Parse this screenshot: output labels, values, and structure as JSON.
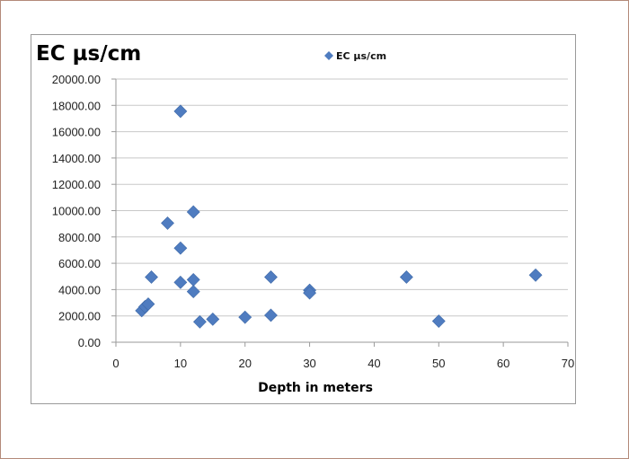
{
  "chart_data": {
    "type": "scatter",
    "title": "EC µs/cm",
    "xlabel": "Depth in meters",
    "ylabel": "",
    "xlim": [
      0,
      70
    ],
    "ylim": [
      0,
      20000
    ],
    "x_ticks": [
      "0",
      "10",
      "20",
      "30",
      "40",
      "50",
      "60",
      "70"
    ],
    "y_ticks": [
      "0.00",
      "2000.00",
      "4000.00",
      "6000.00",
      "8000.00",
      "10000.00",
      "12000.00",
      "14000.00",
      "16000.00",
      "18000.00",
      "20000.00"
    ],
    "grid": true,
    "legend_position": "top-right",
    "series": [
      {
        "name": "EC µs/cm",
        "color": "#4f7cc0",
        "marker": "diamond",
        "points": [
          {
            "x": 4,
            "y": 2400
          },
          {
            "x": 4.5,
            "y": 2700
          },
          {
            "x": 5,
            "y": 2900
          },
          {
            "x": 5.5,
            "y": 4950
          },
          {
            "x": 8,
            "y": 9050
          },
          {
            "x": 10,
            "y": 17550
          },
          {
            "x": 10,
            "y": 7150
          },
          {
            "x": 10,
            "y": 4550
          },
          {
            "x": 12,
            "y": 9900
          },
          {
            "x": 12,
            "y": 4750
          },
          {
            "x": 12,
            "y": 3850
          },
          {
            "x": 13,
            "y": 1550
          },
          {
            "x": 15,
            "y": 1750
          },
          {
            "x": 20,
            "y": 1900
          },
          {
            "x": 24,
            "y": 4950
          },
          {
            "x": 24,
            "y": 2050
          },
          {
            "x": 30,
            "y": 3950
          },
          {
            "x": 30,
            "y": 3750
          },
          {
            "x": 45,
            "y": 4950
          },
          {
            "x": 50,
            "y": 1600
          },
          {
            "x": 65,
            "y": 5100
          }
        ]
      }
    ]
  }
}
